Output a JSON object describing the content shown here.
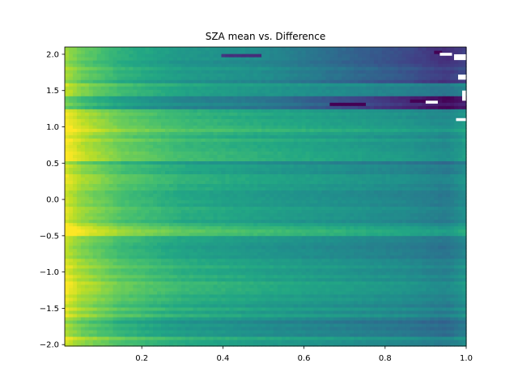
{
  "chart_data": {
    "type": "heatmap",
    "title": "SZA mean vs. Difference",
    "xlabel": "",
    "ylabel": "",
    "xlim": [
      0.01,
      1.0
    ],
    "ylim": [
      -2.02,
      2.1
    ],
    "colormap": "viridis",
    "grid": false,
    "x_ticks": [
      {
        "value": 0.2,
        "label": "0.2"
      },
      {
        "value": 0.4,
        "label": "0.4"
      },
      {
        "value": 0.6,
        "label": "0.6"
      },
      {
        "value": 0.8,
        "label": "0.8"
      },
      {
        "value": 1.0,
        "label": "1.0"
      }
    ],
    "y_ticks": [
      {
        "value": 2.0,
        "label": "2.0"
      },
      {
        "value": 1.5,
        "label": "1.5"
      },
      {
        "value": 1.0,
        "label": "1.0"
      },
      {
        "value": 0.5,
        "label": "0.5"
      },
      {
        "value": 0.0,
        "label": "0.0"
      },
      {
        "value": -0.5,
        "label": "−0.5"
      },
      {
        "value": -1.0,
        "label": "−1.0"
      },
      {
        "value": -1.5,
        "label": "−1.5"
      },
      {
        "value": -2.0,
        "label": "−2.0"
      }
    ],
    "columns": 100,
    "rows": 92,
    "color_profile": [
      [
        0.01,
        0.95
      ],
      [
        0.05,
        0.85
      ],
      [
        0.15,
        0.72
      ],
      [
        0.3,
        0.62
      ],
      [
        0.5,
        0.56
      ],
      [
        0.7,
        0.51
      ],
      [
        0.85,
        0.47
      ],
      [
        0.95,
        0.42
      ],
      [
        1.0,
        0.5
      ]
    ],
    "row_bands": [
      {
        "y": [
          1.9,
          2.1
        ],
        "offset": -0.12,
        "dark_scale": 1.3
      },
      {
        "y": [
          1.6,
          1.9
        ],
        "offset": -0.08,
        "dark_scale": 1.1
      },
      {
        "y": [
          1.25,
          1.45
        ],
        "offset": -0.15,
        "dark_scale": 1.5
      },
      {
        "y": [
          1.05,
          1.25
        ],
        "offset": 0.02,
        "dark_scale": 0.6
      },
      {
        "y": [
          0.9,
          1.05
        ],
        "offset": 0.08,
        "dark_scale": 0.4
      },
      {
        "y": [
          0.55,
          0.9
        ],
        "offset": 0.06,
        "dark_scale": 0.3
      },
      {
        "y": [
          0.4,
          0.55
        ],
        "offset": -0.04,
        "dark_scale": 0.6
      },
      {
        "y": [
          -0.35,
          0.4
        ],
        "offset": 0.01,
        "dark_scale": 0.5
      },
      {
        "y": [
          -0.5,
          -0.35
        ],
        "offset": 0.12,
        "dark_scale": 0.3
      },
      {
        "y": [
          -0.9,
          -0.5
        ],
        "offset": -0.02,
        "dark_scale": 0.6
      },
      {
        "y": [
          -1.3,
          -0.9
        ],
        "offset": 0.03,
        "dark_scale": 0.5
      },
      {
        "y": [
          -1.6,
          -1.3
        ],
        "offset": 0.0,
        "dark_scale": 0.7
      },
      {
        "y": [
          -1.9,
          -1.6
        ],
        "offset": -0.08,
        "dark_scale": 0.9
      },
      {
        "y": [
          -2.02,
          -1.9
        ],
        "offset": 0.02,
        "dark_scale": 0.6
      }
    ],
    "missing_cells": [
      {
        "x": [
          0.935,
          0.965
        ],
        "y": [
          1.98,
          2.02
        ]
      },
      {
        "x": [
          0.97,
          1.0
        ],
        "y": [
          1.92,
          2.0
        ]
      },
      {
        "x": [
          0.98,
          1.0
        ],
        "y": [
          1.65,
          1.72
        ]
      },
      {
        "x": [
          0.99,
          1.0
        ],
        "y": [
          1.36,
          1.5
        ]
      },
      {
        "x": [
          0.9,
          0.93
        ],
        "y": [
          1.32,
          1.36
        ]
      },
      {
        "x": [
          0.975,
          1.0
        ],
        "y": [
          1.08,
          1.12
        ]
      }
    ],
    "dark_spots": [
      {
        "x": [
          0.92,
          0.94
        ],
        "y": [
          2.0,
          2.04
        ]
      },
      {
        "x": [
          0.86,
          0.9
        ],
        "y": [
          1.32,
          1.37
        ]
      },
      {
        "x": [
          0.4,
          0.5
        ],
        "y": [
          1.95,
          2.0
        ]
      },
      {
        "x": [
          0.66,
          0.75
        ],
        "y": [
          1.3,
          1.36
        ]
      }
    ],
    "colors": {
      "background": "#ffffff",
      "axis": "#000000"
    }
  }
}
